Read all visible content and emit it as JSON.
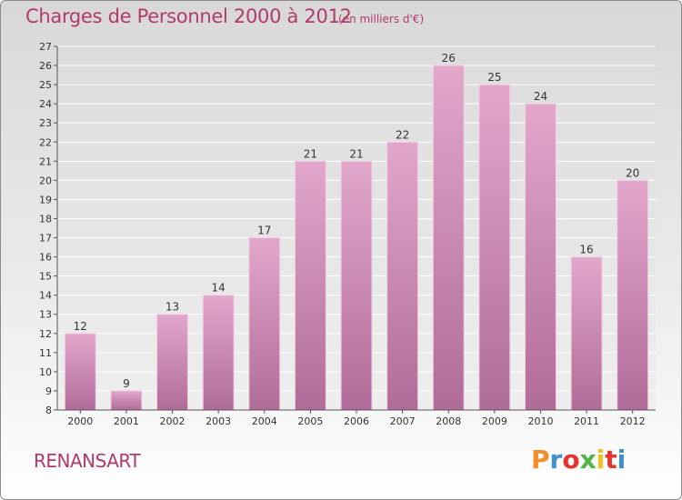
{
  "header": {
    "title": "Charges de Personnel 2000 à 2012",
    "subtitle": "(en milliers d'€)"
  },
  "footer": {
    "commune": "RENANSART",
    "logo_text": "Proxiti",
    "logo_colors": [
      "#f28c28",
      "#3f8fd2",
      "#e8332f",
      "#56b446",
      "#f3c11b",
      "#e8332f",
      "#3f8fd2"
    ]
  },
  "colors": {
    "accent": "#b13a6c",
    "bar_top": "#e2a7cb",
    "bar_bottom": "#b06c98"
  },
  "chart_data": {
    "type": "bar",
    "title": "Charges de Personnel 2000 à 2012",
    "subtitle": "(en milliers d'€)",
    "categories": [
      "2000",
      "2001",
      "2002",
      "2003",
      "2004",
      "2005",
      "2006",
      "2007",
      "2008",
      "2009",
      "2010",
      "2011",
      "2012"
    ],
    "values": [
      12,
      9,
      13,
      14,
      17,
      21,
      21,
      22,
      26,
      25,
      24,
      16,
      20
    ],
    "ylim": [
      8,
      27
    ],
    "yticks": [
      8,
      9,
      10,
      11,
      12,
      13,
      14,
      15,
      16,
      17,
      18,
      19,
      20,
      21,
      22,
      23,
      24,
      25,
      26,
      27
    ],
    "grid": true,
    "data_labels": true
  }
}
